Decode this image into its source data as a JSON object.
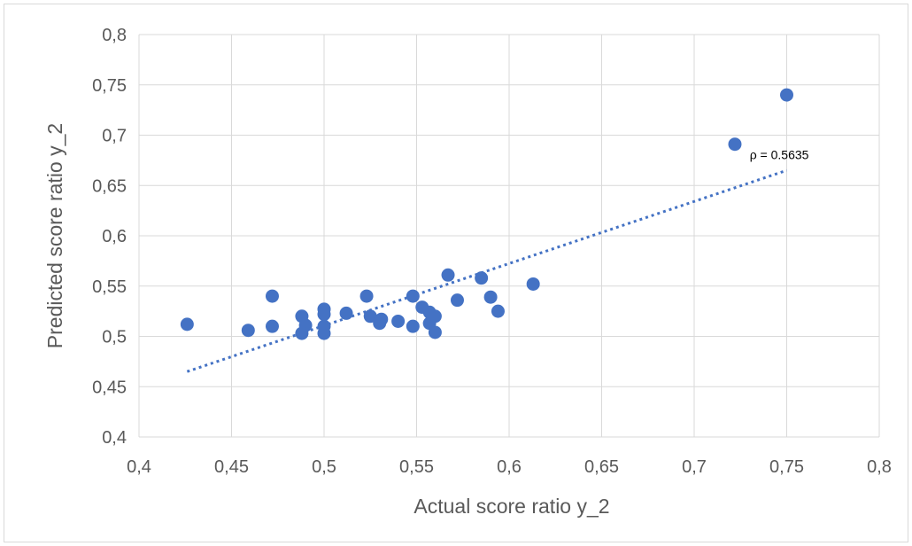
{
  "chart_data": {
    "type": "scatter",
    "xlabel": "Actual score ratio y_2",
    "ylabel": "Predicted score ratio y_2",
    "xlim": [
      0.4,
      0.8
    ],
    "ylim": [
      0.4,
      0.8
    ],
    "xticks": [
      0.4,
      0.45,
      0.5,
      0.55,
      0.6,
      0.65,
      0.7,
      0.75,
      0.8
    ],
    "yticks": [
      0.4,
      0.45,
      0.5,
      0.55,
      0.6,
      0.65,
      0.7,
      0.75,
      0.8
    ],
    "decimal_separator": ",",
    "grid": true,
    "marker_color": "#4472c4",
    "trendline": {
      "x": [
        0.426,
        0.75
      ],
      "y": [
        0.465,
        0.665
      ],
      "style": "dotted",
      "color": "#4472c4",
      "label": "ρ = 0.5635",
      "label_position": [
        0.73,
        0.676
      ]
    },
    "points": [
      {
        "x": 0.426,
        "y": 0.512
      },
      {
        "x": 0.459,
        "y": 0.506
      },
      {
        "x": 0.472,
        "y": 0.54
      },
      {
        "x": 0.472,
        "y": 0.51
      },
      {
        "x": 0.488,
        "y": 0.52
      },
      {
        "x": 0.49,
        "y": 0.511
      },
      {
        "x": 0.488,
        "y": 0.503
      },
      {
        "x": 0.5,
        "y": 0.527
      },
      {
        "x": 0.5,
        "y": 0.522
      },
      {
        "x": 0.5,
        "y": 0.51
      },
      {
        "x": 0.5,
        "y": 0.503
      },
      {
        "x": 0.512,
        "y": 0.523
      },
      {
        "x": 0.523,
        "y": 0.54
      },
      {
        "x": 0.525,
        "y": 0.52
      },
      {
        "x": 0.53,
        "y": 0.513
      },
      {
        "x": 0.531,
        "y": 0.517
      },
      {
        "x": 0.54,
        "y": 0.515
      },
      {
        "x": 0.548,
        "y": 0.54
      },
      {
        "x": 0.548,
        "y": 0.51
      },
      {
        "x": 0.553,
        "y": 0.529
      },
      {
        "x": 0.557,
        "y": 0.524
      },
      {
        "x": 0.557,
        "y": 0.513
      },
      {
        "x": 0.56,
        "y": 0.52
      },
      {
        "x": 0.56,
        "y": 0.504
      },
      {
        "x": 0.567,
        "y": 0.561
      },
      {
        "x": 0.572,
        "y": 0.536
      },
      {
        "x": 0.585,
        "y": 0.558
      },
      {
        "x": 0.59,
        "y": 0.539
      },
      {
        "x": 0.594,
        "y": 0.525
      },
      {
        "x": 0.613,
        "y": 0.552
      },
      {
        "x": 0.722,
        "y": 0.691
      },
      {
        "x": 0.75,
        "y": 0.74
      }
    ]
  }
}
